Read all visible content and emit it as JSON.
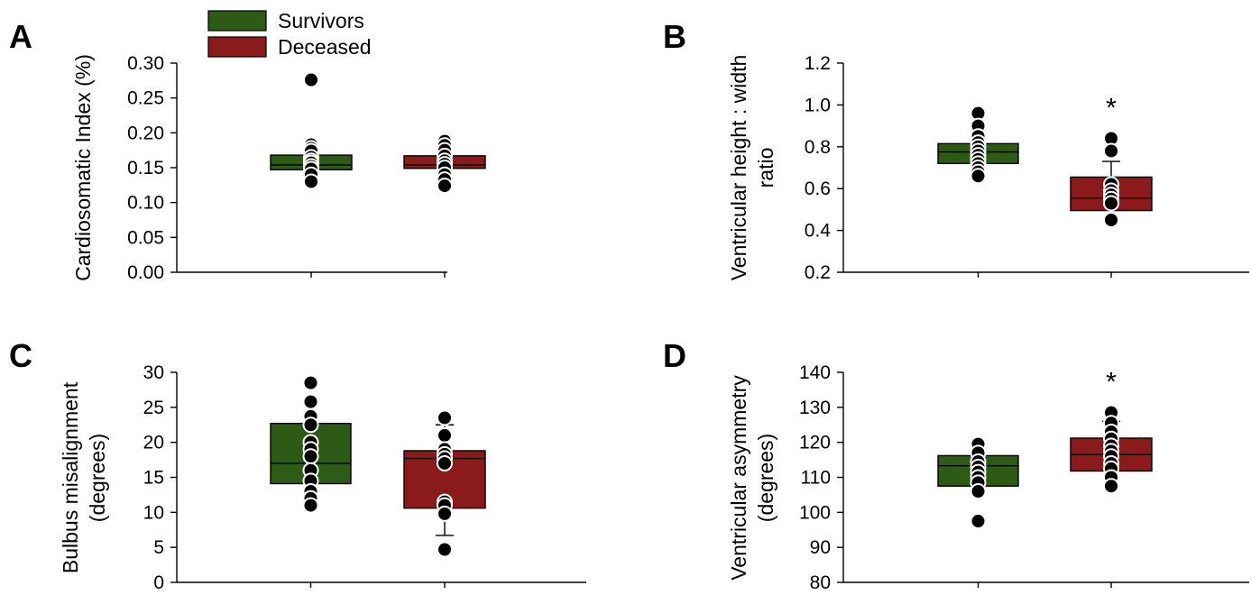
{
  "legend": {
    "items": [
      {
        "label": "Survivors",
        "color": "#2d5a14"
      },
      {
        "label": "Deceased",
        "color": "#8b1a1a"
      }
    ]
  },
  "chart_data": [
    {
      "panel": "A",
      "type": "box",
      "ylabel": [
        "Cardiosomatic Index (%)"
      ],
      "ylim": [
        0.0,
        0.3
      ],
      "yticks": [
        "0.00",
        "0.05",
        "0.10",
        "0.15",
        "0.20",
        "0.25",
        "0.30"
      ],
      "significance": null,
      "series": [
        {
          "name": "Survivors",
          "q1": 0.147,
          "median": 0.154,
          "q3": 0.168,
          "whisker_low": null,
          "whisker_high": null,
          "points": [
            0.276,
            0.183,
            0.178,
            0.174,
            0.165,
            0.16,
            0.157,
            0.152,
            0.148,
            0.14,
            0.13
          ]
        },
        {
          "name": "Deceased",
          "q1": 0.149,
          "median": 0.154,
          "q3": 0.167,
          "whisker_low": null,
          "whisker_high": null,
          "points": [
            0.188,
            0.182,
            0.175,
            0.167,
            0.16,
            0.155,
            0.15,
            0.14,
            0.133,
            0.124
          ]
        }
      ]
    },
    {
      "panel": "B",
      "type": "box",
      "ylabel": [
        "Ventricular height : width",
        "ratio"
      ],
      "ylim": [
        0.2,
        1.2
      ],
      "yticks": [
        "0.2",
        "0.4",
        "0.6",
        "0.8",
        "1.0",
        "1.2"
      ],
      "significance": "*",
      "series": [
        {
          "name": "Survivors",
          "q1": 0.72,
          "median": 0.775,
          "q3": 0.815,
          "whisker_low": null,
          "whisker_high": null,
          "points": [
            0.96,
            0.9,
            0.85,
            0.82,
            0.8,
            0.78,
            0.76,
            0.74,
            0.72,
            0.7,
            0.68,
            0.66
          ]
        },
        {
          "name": "Deceased",
          "q1": 0.495,
          "median": 0.555,
          "q3": 0.655,
          "whisker_low": null,
          "whisker_high": 0.73,
          "points": [
            0.84,
            0.78,
            0.62,
            0.59,
            0.57,
            0.55,
            0.53,
            0.45
          ]
        }
      ]
    },
    {
      "panel": "C",
      "type": "box",
      "ylabel": [
        "Bulbus misalignment",
        "(degrees)"
      ],
      "ylim": [
        0,
        30
      ],
      "yticks": [
        "0",
        "5",
        "10",
        "15",
        "20",
        "25",
        "30"
      ],
      "significance": null,
      "series": [
        {
          "name": "Survivors",
          "q1": 14.1,
          "median": 17.0,
          "q3": 22.7,
          "whisker_low": null,
          "whisker_high": null,
          "points": [
            28.5,
            25.8,
            23.7,
            22.5,
            20.0,
            19.0,
            18.0,
            16.0,
            14.5,
            13.0,
            12.0,
            11.0
          ]
        },
        {
          "name": "Deceased",
          "q1": 10.6,
          "median": 17.7,
          "q3": 18.8,
          "whisker_low": 6.7,
          "whisker_high": 22.5,
          "points": [
            23.5,
            21.0,
            19.0,
            18.3,
            17.7,
            17.0,
            11.5,
            11.0,
            9.8,
            4.7
          ]
        }
      ]
    },
    {
      "panel": "D",
      "type": "box",
      "ylabel": [
        "Ventricular asymmetry",
        "(degrees)"
      ],
      "ylim": [
        80,
        140
      ],
      "yticks": [
        "80",
        "90",
        "100",
        "110",
        "120",
        "130",
        "140"
      ],
      "significance": "*",
      "series": [
        {
          "name": "Survivors",
          "q1": 107.5,
          "median": 113.3,
          "q3": 116.2,
          "whisker_low": null,
          "whisker_high": null,
          "points": [
            119.5,
            117.0,
            114.5,
            113.0,
            111.5,
            110.0,
            108.5,
            106.0,
            97.5
          ]
        },
        {
          "name": "Deceased",
          "q1": 111.8,
          "median": 116.5,
          "q3": 121.2,
          "whisker_low": null,
          "whisker_high": 126.0,
          "points": [
            128.5,
            125.5,
            123.0,
            121.0,
            119.0,
            117.5,
            116.0,
            114.0,
            112.5,
            110.0,
            107.5
          ]
        }
      ]
    }
  ]
}
